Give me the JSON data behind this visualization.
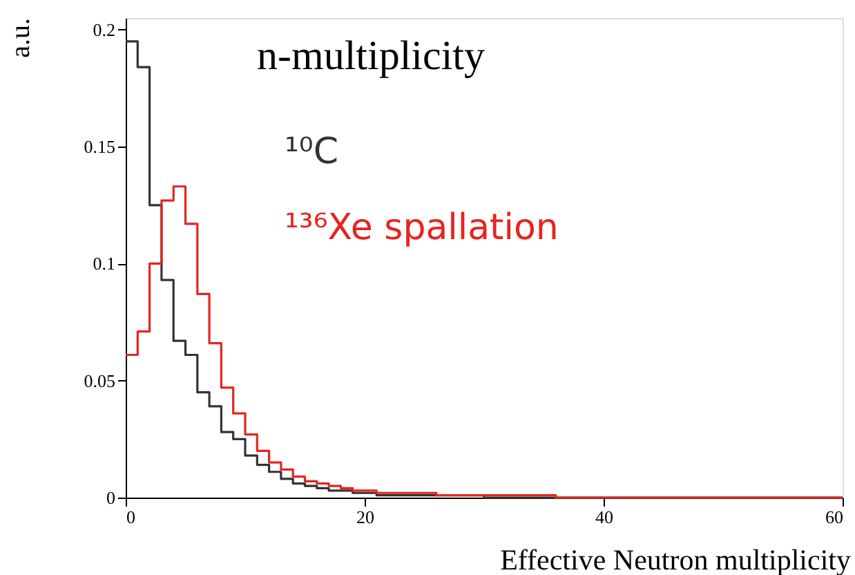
{
  "chart_data": {
    "type": "histogram",
    "title": "n-multiplicity",
    "xlabel": "Effective Neutron multiplicity",
    "ylabel": "a.u.",
    "bins": [
      0,
      1,
      2,
      3,
      4,
      5,
      6,
      7,
      8,
      9,
      10,
      11,
      12,
      13,
      14,
      15,
      16,
      17,
      18,
      19,
      20,
      21,
      22,
      23,
      24,
      25,
      26,
      27,
      28,
      29,
      30,
      31,
      32,
      33,
      34,
      35,
      36,
      37,
      38,
      39,
      40,
      41,
      42,
      43,
      44,
      45,
      46,
      47,
      48,
      49,
      50,
      51,
      52,
      53,
      54,
      55,
      56,
      57,
      58,
      59,
      60
    ],
    "series": [
      {
        "name": "¹⁰C",
        "color": "#333333",
        "values": [
          0.195,
          0.184,
          0.125,
          0.093,
          0.067,
          0.061,
          0.045,
          0.039,
          0.028,
          0.025,
          0.018,
          0.014,
          0.011,
          0.008,
          0.006,
          0.005,
          0.004,
          0.003,
          0.003,
          0.002,
          0.002,
          0.001,
          0.001,
          0.001,
          0.001,
          0.001,
          0.001,
          0.001,
          0.001,
          0.001,
          0,
          0,
          0,
          0,
          0,
          0,
          0,
          0,
          0,
          0,
          0,
          0,
          0,
          0,
          0,
          0,
          0,
          0,
          0,
          0,
          0,
          0,
          0,
          0,
          0,
          0,
          0,
          0,
          0,
          0
        ]
      },
      {
        "name": "¹³⁶Xe spallation",
        "color": "#e8231f",
        "values": [
          0.061,
          0.071,
          0.1,
          0.127,
          0.133,
          0.117,
          0.087,
          0.066,
          0.047,
          0.036,
          0.027,
          0.02,
          0.015,
          0.012,
          0.009,
          0.007,
          0.006,
          0.005,
          0.004,
          0.003,
          0.003,
          0.002,
          0.002,
          0.002,
          0.002,
          0.002,
          0.001,
          0.001,
          0.001,
          0.001,
          0.001,
          0.001,
          0.001,
          0.001,
          0.001,
          0.001,
          0,
          0,
          0,
          0,
          0,
          0,
          0,
          0,
          0,
          0,
          0,
          0,
          0,
          0,
          0,
          0,
          0,
          0,
          0,
          0,
          0,
          0,
          0,
          0
        ]
      }
    ],
    "xlim": [
      0,
      60
    ],
    "xticks": [
      0,
      20,
      40,
      60
    ],
    "ylim": [
      0,
      0.205
    ],
    "yticks": [
      0,
      0.05,
      0.1,
      0.15,
      0.2
    ],
    "grid": false,
    "legend": "top"
  }
}
